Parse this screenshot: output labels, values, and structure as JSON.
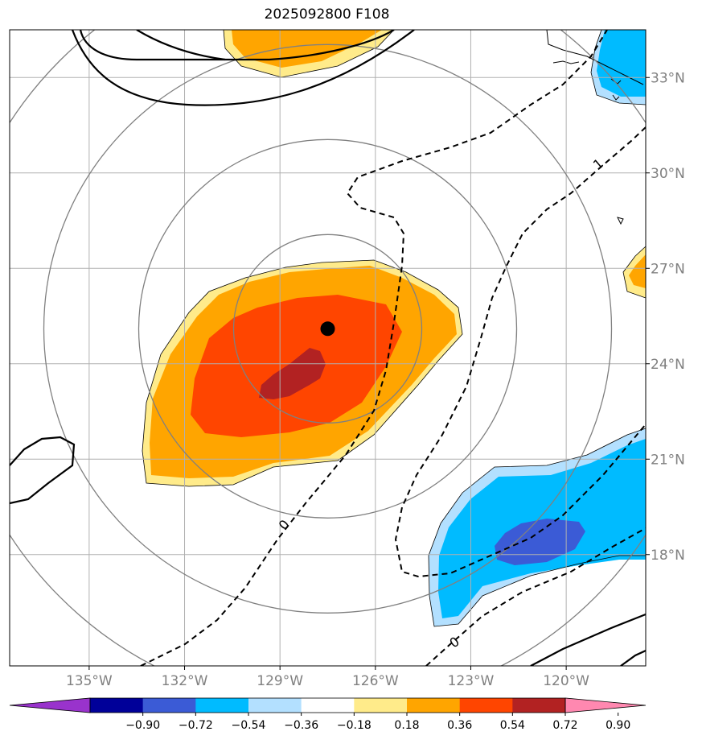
{
  "title": "2025092800 F108",
  "map": {
    "lon_range": [
      -137.5,
      -117.5
    ],
    "lat_range": [
      14.5,
      34.5
    ],
    "lon_ticks": [
      -135,
      -132,
      -129,
      -126,
      -123,
      -120
    ],
    "lon_tick_labels": [
      "135°W",
      "132°W",
      "129°W",
      "126°W",
      "123°W",
      "120°W"
    ],
    "lat_ticks": [
      18,
      21,
      24,
      27,
      30,
      33
    ],
    "lat_tick_labels": [
      "18°N",
      "21°N",
      "24°N",
      "27°N",
      "30°N",
      "33°N"
    ],
    "grid": true,
    "storm_center": {
      "lon": -127.5,
      "lat": 25.1
    },
    "range_rings_count": 4,
    "contour_labels": [
      "0",
      "0",
      "1"
    ]
  },
  "colorbar": {
    "tick_labels": [
      "−0.90",
      "−0.72",
      "−0.54",
      "−0.36",
      "−0.18",
      "0.18",
      "0.36",
      "0.54",
      "0.72",
      "0.90"
    ],
    "colors": [
      "#9933cc",
      "#000099",
      "#3b5bd6",
      "#00bbff",
      "#b3e0ff",
      "#ffffff",
      "#ffeb8a",
      "#ffa500",
      "#ff4500",
      "#b22222",
      "#ff88b0"
    ]
  },
  "colors": {
    "grid": "#b0b0b0",
    "ring": "#808080",
    "tick_label": "#808080",
    "center": "#000000"
  }
}
